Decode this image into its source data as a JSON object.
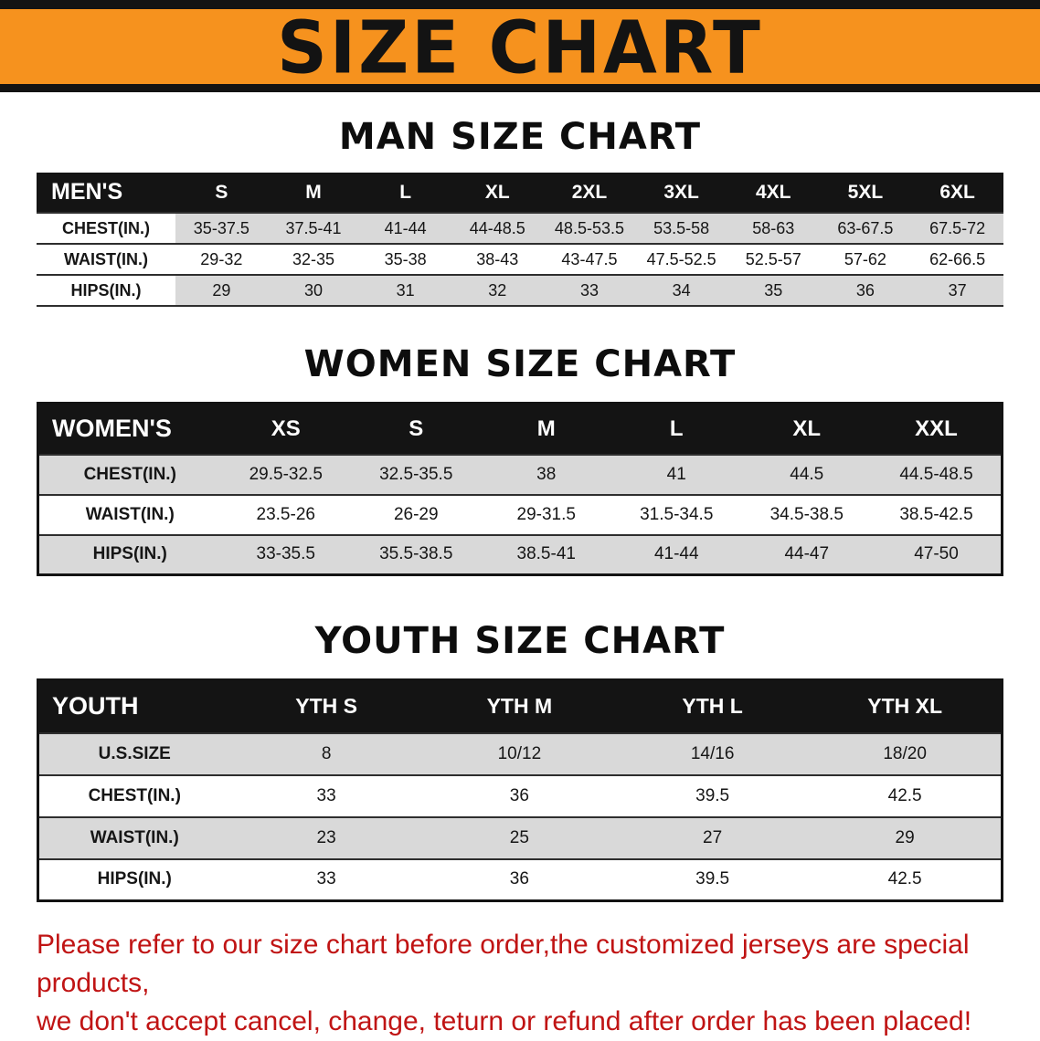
{
  "banner": {
    "title": "SIZE CHART"
  },
  "colors": {
    "banner_bg": "#f6921e",
    "stripe": "#d9d9d9",
    "footer_text": "#c01414",
    "header_bg": "#141414"
  },
  "men": {
    "heading": "MAN SIZE CHART",
    "header": [
      "MEN'S",
      "S",
      "M",
      "L",
      "XL",
      "2XL",
      "3XL",
      "4XL",
      "5XL",
      "6XL"
    ],
    "rows": [
      {
        "label": "CHEST(IN.)",
        "values": [
          "35-37.5",
          "37.5-41",
          "41-44",
          "44-48.5",
          "48.5-53.5",
          "53.5-58",
          "58-63",
          "63-67.5",
          "67.5-72"
        ]
      },
      {
        "label": "WAIST(IN.)",
        "values": [
          "29-32",
          "32-35",
          "35-38",
          "38-43",
          "43-47.5",
          "47.5-52.5",
          "52.5-57",
          "57-62",
          "62-66.5"
        ]
      },
      {
        "label": "HIPS(IN.)",
        "values": [
          "29",
          "30",
          "31",
          "32",
          "33",
          "34",
          "35",
          "36",
          "37"
        ]
      }
    ]
  },
  "women": {
    "heading": "WOMEN SIZE CHART",
    "header": [
      "WOMEN'S",
      "XS",
      "S",
      "M",
      "L",
      "XL",
      "XXL"
    ],
    "rows": [
      {
        "label": "CHEST(IN.)",
        "values": [
          "29.5-32.5",
          "32.5-35.5",
          "38",
          "41",
          "44.5",
          "44.5-48.5"
        ]
      },
      {
        "label": "WAIST(IN.)",
        "values": [
          "23.5-26",
          "26-29",
          "29-31.5",
          "31.5-34.5",
          "34.5-38.5",
          "38.5-42.5"
        ]
      },
      {
        "label": "HIPS(IN.)",
        "values": [
          "33-35.5",
          "35.5-38.5",
          "38.5-41",
          "41-44",
          "44-47",
          "47-50"
        ]
      }
    ]
  },
  "youth": {
    "heading": "YOUTH SIZE CHART",
    "header": [
      "YOUTH",
      "YTH S",
      "YTH M",
      "YTH L",
      "YTH XL"
    ],
    "rows": [
      {
        "label": "U.S.SIZE",
        "values": [
          "8",
          "10/12",
          "14/16",
          "18/20"
        ]
      },
      {
        "label": "CHEST(IN.)",
        "values": [
          "33",
          "36",
          "39.5",
          "42.5"
        ]
      },
      {
        "label": "WAIST(IN.)",
        "values": [
          "23",
          "25",
          "27",
          "29"
        ]
      },
      {
        "label": "HIPS(IN.)",
        "values": [
          "33",
          "36",
          "39.5",
          "42.5"
        ]
      }
    ]
  },
  "footer": {
    "line1": "Please refer to our size chart before order,the customized jerseys are special products,",
    "line2": "we don't accept cancel, change, teturn or refund after order has been placed!"
  }
}
